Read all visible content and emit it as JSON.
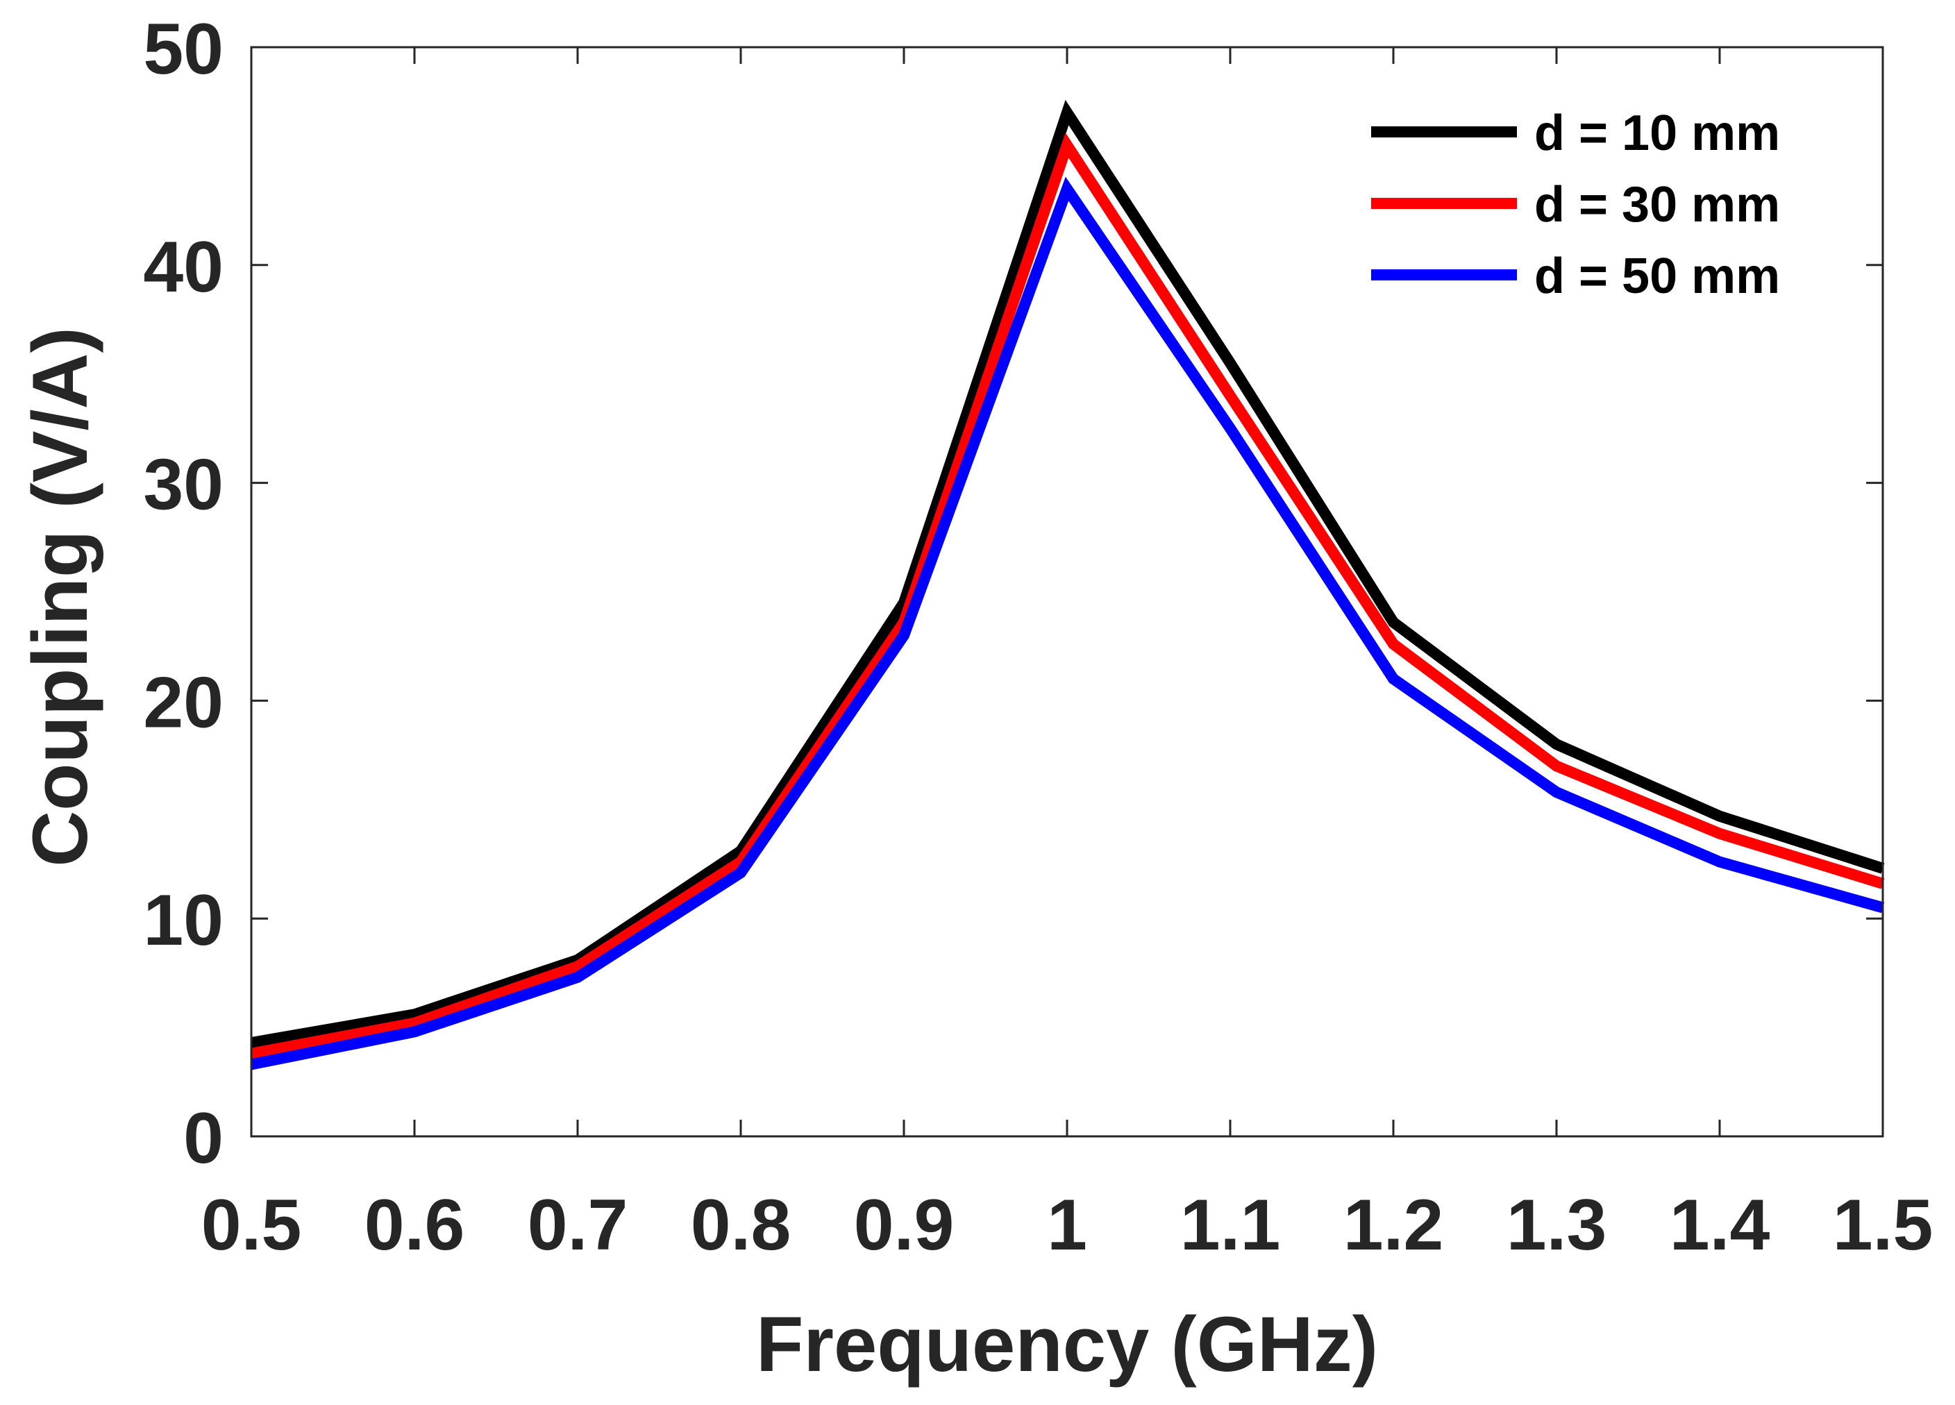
{
  "chart_data": {
    "type": "line",
    "title": "",
    "xlabel": "Frequency (GHz)",
    "ylabel": "Coupling (V/A)",
    "xlim": [
      0.5,
      1.5
    ],
    "ylim": [
      0,
      50
    ],
    "x": [
      0.5,
      0.6,
      0.7,
      0.8,
      0.9,
      1.0,
      1.1,
      1.2,
      1.3,
      1.4,
      1.5
    ],
    "xticks": [
      "0.5",
      "0.6",
      "0.7",
      "0.8",
      "0.9",
      "1",
      "1.1",
      "1.2",
      "1.3",
      "1.4",
      "1.5"
    ],
    "yticks": [
      "0",
      "10",
      "20",
      "30",
      "40",
      "50"
    ],
    "grid": false,
    "legend_position": "top-right",
    "series": [
      {
        "name": "d = 10 mm",
        "color": "#000000",
        "values": [
          4.3,
          5.6,
          8.1,
          13.1,
          24.5,
          47.0,
          35.5,
          23.6,
          18.0,
          14.7,
          12.3
        ]
      },
      {
        "name": "d = 30 mm",
        "color": "#ff0000",
        "values": [
          3.8,
          5.2,
          7.8,
          12.6,
          23.6,
          45.5,
          34.0,
          22.6,
          17.0,
          13.9,
          11.6
        ]
      },
      {
        "name": "d = 50 mm",
        "color": "#0000ff",
        "values": [
          3.3,
          4.8,
          7.3,
          12.1,
          23.0,
          43.5,
          32.5,
          21.0,
          15.8,
          12.6,
          10.5
        ]
      }
    ]
  }
}
